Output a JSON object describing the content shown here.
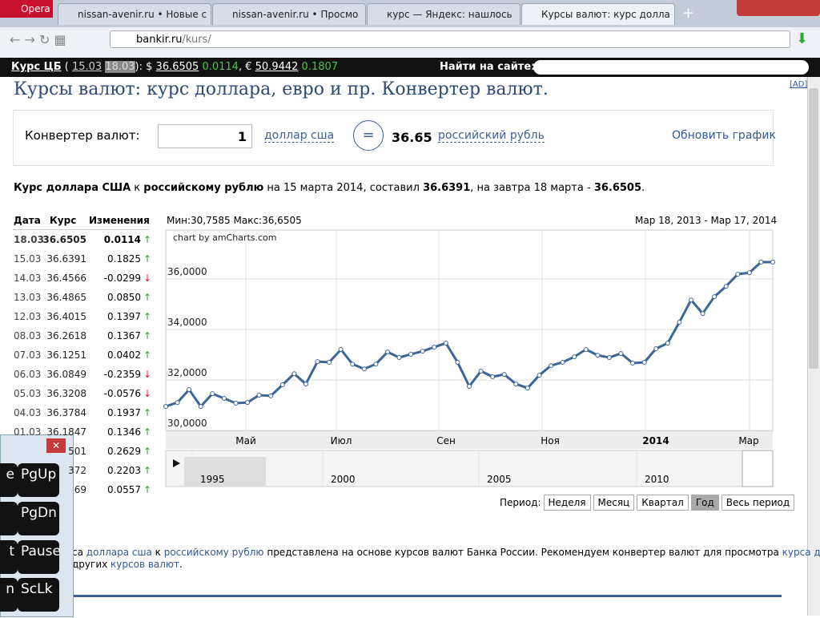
{
  "browser": {
    "opera": "Opera",
    "tabs": [
      "nissan-avenir.ru • Новые с",
      "nissan-avenir.ru • Просмо",
      "курс — Яндекс: нашлось",
      "Курсы валют: курс долла"
    ],
    "new_tab": "+",
    "url_host": "bankir.ru",
    "url_path": "/kurs/"
  },
  "ticker": {
    "label": "Курс ЦБ",
    "open": "(",
    "date1": "15.03",
    "date2": "18.03",
    "usd_sign": "): $",
    "usd": "36.6505",
    "usd_change": "0.0114",
    "eur_sign": ", €",
    "eur": "50.9442",
    "eur_change": "0.1807",
    "search": "Найти на сайте:",
    "ad": "[AD]"
  },
  "page": {
    "heading": "Курсы валют: курс доллара, евро и пр. Конвертер валют.",
    "converter": {
      "label": "Конвертер валют:",
      "amount": "1",
      "from": "доллар сша",
      "equals": "=",
      "result": "36.65",
      "to": "российский рубль",
      "refresh": "Обновить график"
    },
    "summary": [
      {
        "text": "Курс доллара США",
        "bold": true
      },
      {
        "text": " к ",
        "bold": false
      },
      {
        "text": "российскому рублю",
        "bold": true
      },
      {
        "text": " на 15 марта 2014, составил ",
        "bold": false
      },
      {
        "text": "36.6391",
        "bold": true
      },
      {
        "text": ", на завтра 18 марта - ",
        "bold": false
      },
      {
        "text": "36.6505",
        "bold": true
      },
      {
        "text": ".",
        "bold": false
      }
    ],
    "table": {
      "headers": [
        "Дата",
        "Курс",
        "Изменения"
      ],
      "rows": [
        {
          "date": "18.03",
          "rate": "36.6505",
          "change": "0.0114",
          "arrow": "↑"
        },
        {
          "date": "15.03",
          "rate": "36.6391",
          "change": "0.1825",
          "arrow": "↑"
        },
        {
          "date": "14.03",
          "rate": "36.4566",
          "change": "-0.0299",
          "arrow": "↓"
        },
        {
          "date": "13.03",
          "rate": "36.4865",
          "change": "0.0850",
          "arrow": "↑"
        },
        {
          "date": "12.03",
          "rate": "36.4015",
          "change": "0.1397",
          "arrow": "↑"
        },
        {
          "date": "08.03",
          "rate": "36.2618",
          "change": "0.1367",
          "arrow": "↑"
        },
        {
          "date": "07.03",
          "rate": "36.1251",
          "change": "0.0402",
          "arrow": "↑"
        },
        {
          "date": "06.03",
          "rate": "36.0849",
          "change": "-0.2359",
          "arrow": "↓"
        },
        {
          "date": "05.03",
          "rate": "36.3208",
          "change": "-0.0576",
          "arrow": "↓"
        },
        {
          "date": "04.03",
          "rate": "36.3784",
          "change": "0.1937",
          "arrow": "↑"
        },
        {
          "date": "01.03",
          "rate": "36.1847",
          "change": "0.1346",
          "arrow": "↑"
        },
        {
          "rate": "501",
          "change": "0.2629",
          "arrow": "↑"
        },
        {
          "rate": "372",
          "change": "0.2203",
          "arrow": "↑"
        },
        {
          "rate": "69",
          "change": "0.0557",
          "arrow": "↑"
        }
      ]
    },
    "footer": [
      {
        "text": "са ",
        "link": false
      },
      {
        "text": "доллара сша",
        "link": true
      },
      {
        "text": " к ",
        "link": false
      },
      {
        "text": "российскому рублю",
        "link": true
      },
      {
        "text": " представлена на основе курсов валют Банка России. Рекомендуем конвертер валют для просмотра ",
        "link": false
      },
      {
        "text": "курса доллара",
        "link": true
      },
      {
        "text": ",",
        "link": false
      }
    ],
    "footer2": [
      {
        "text": "других ",
        "link": false
      },
      {
        "text": "курсов валют",
        "link": true
      },
      {
        "text": ".",
        "link": false
      }
    ]
  },
  "chart": {
    "type": "line",
    "min": "Мин:30,7585",
    "max": "Макс:36,6505",
    "range": "Мар 18, 2013 - Мар 17, 2014",
    "credit": "chart by amCharts.com",
    "color": "#3b6696",
    "values": [
      30.95,
      31.11,
      31.62,
      30.95,
      31.46,
      31.27,
      31.08,
      31.11,
      31.4,
      31.37,
      31.81,
      32.25,
      31.84,
      32.73,
      32.7,
      33.21,
      32.63,
      32.44,
      32.63,
      33.11,
      32.89,
      33.02,
      33.14,
      33.3,
      33.46,
      32.7,
      31.75,
      32.35,
      32.13,
      32.22,
      31.84,
      31.68,
      32.19,
      32.57,
      32.7,
      32.92,
      33.21,
      32.98,
      32.89,
      33.05,
      32.67,
      32.7,
      33.24,
      33.46,
      34.29,
      35.17,
      34.63,
      35.3,
      35.71,
      36.19,
      36.25,
      36.67,
      36.67
    ],
    "ylim": [
      29.97,
      37.94
    ],
    "yticks": [
      {
        "value": 30,
        "label": "30,0000"
      },
      {
        "value": 32,
        "label": "32,0000"
      },
      {
        "value": 34,
        "label": "34,0000"
      },
      {
        "value": 36,
        "label": "36,0000"
      }
    ],
    "xlabels": [
      "Май",
      "Июл",
      "Сен",
      "Ноя",
      "2014",
      "Мар"
    ],
    "navigator": [
      "1995",
      "2000",
      "2005",
      "2010"
    ],
    "period": "Период:",
    "buttons": [
      "Неделя",
      "Месяц",
      "Квартал",
      "Год",
      "Весь период"
    ],
    "selected": "Год"
  },
  "keyboard": {
    "close": "✕",
    "keys": [
      "e",
      "PgUp",
      "PgDn",
      "t",
      "Pause",
      "n",
      "ScLk"
    ]
  }
}
